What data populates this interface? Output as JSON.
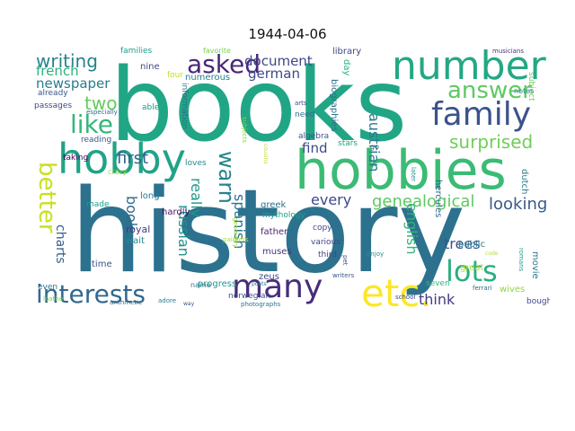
{
  "title": "1944-04-06",
  "words": [
    {
      "text": "history",
      "color": "#2c728e"
    },
    {
      "text": "books",
      "color": "#21a685"
    },
    {
      "text": "hobbies",
      "color": "#3bbb75"
    },
    {
      "text": "hobby",
      "color": "#20a386"
    },
    {
      "text": "number",
      "color": "#22a884"
    },
    {
      "text": "family",
      "color": "#3b528b"
    },
    {
      "text": "many",
      "color": "#472d7b"
    },
    {
      "text": "etc.",
      "color": "#fde725"
    },
    {
      "text": "interests",
      "color": "#31688e"
    },
    {
      "text": "lots",
      "color": "#29af7f"
    },
    {
      "text": "asked",
      "color": "#482878"
    },
    {
      "text": "answer",
      "color": "#5ec962"
    },
    {
      "text": "like",
      "color": "#35b779"
    },
    {
      "text": "better",
      "color": "#c8e020"
    },
    {
      "text": "writing",
      "color": "#26828e"
    },
    {
      "text": "warn",
      "color": "#25848e"
    },
    {
      "text": "surprised",
      "color": "#6ece58"
    },
    {
      "text": "genealogical",
      "color": "#5ec962"
    },
    {
      "text": "document",
      "color": "#404688"
    },
    {
      "text": "german",
      "color": "#3e4989"
    },
    {
      "text": "french",
      "color": "#2db27d"
    },
    {
      "text": "newspaper",
      "color": "#287c8e"
    },
    {
      "text": "two",
      "color": "#65cb5e"
    },
    {
      "text": "austrian",
      "color": "#2a788e"
    },
    {
      "text": "really",
      "color": "#1f988b"
    },
    {
      "text": "find",
      "color": "#3e4a89"
    },
    {
      "text": "first",
      "color": "#355f8d"
    },
    {
      "text": "charts",
      "color": "#34608d"
    },
    {
      "text": "book",
      "color": "#31688e"
    },
    {
      "text": "russian",
      "color": "#20928c"
    },
    {
      "text": "spanish",
      "color": "#2a768e"
    },
    {
      "text": "every",
      "color": "#3f4788"
    },
    {
      "text": "looking",
      "color": "#38598c"
    },
    {
      "text": "english",
      "color": "#2fb47c"
    },
    {
      "text": "trees",
      "color": "#39568c"
    },
    {
      "text": "think",
      "color": "#443b84"
    },
    {
      "text": "families",
      "color": "#1f9e89"
    },
    {
      "text": "favorite",
      "color": "#7ad151"
    },
    {
      "text": "nine",
      "color": "#3f4889"
    },
    {
      "text": "four",
      "color": "#c0df25"
    },
    {
      "text": "numerous",
      "color": "#26828e"
    },
    {
      "text": "library",
      "color": "#404688"
    },
    {
      "text": "day",
      "color": "#2db27d"
    },
    {
      "text": "biographies",
      "color": "#2e6f8e"
    },
    {
      "text": "subject",
      "color": "#6ece58"
    },
    {
      "text": "musicians",
      "color": "#46327e"
    },
    {
      "text": "notes",
      "color": "#26828e"
    },
    {
      "text": "already",
      "color": "#39568c"
    },
    {
      "text": "passages",
      "color": "#3e4a89"
    },
    {
      "text": "especially",
      "color": "#31688e"
    },
    {
      "text": "able",
      "color": "#1f978b"
    },
    {
      "text": "information",
      "color": "#2e6e8e"
    },
    {
      "text": "arts",
      "color": "#3f4889"
    },
    {
      "text": "need",
      "color": "#2c718e"
    },
    {
      "text": "subjects",
      "color": "#86d549"
    },
    {
      "text": "cousins",
      "color": "#b8de29"
    },
    {
      "text": "reading",
      "color": "#3b528b"
    },
    {
      "text": "loves",
      "color": "#24878e"
    },
    {
      "text": "algebra",
      "color": "#3b518b"
    },
    {
      "text": "stars",
      "color": "#1fa188"
    },
    {
      "text": "hercules",
      "color": "#31688e"
    },
    {
      "text": "dutch",
      "color": "#277f8e"
    },
    {
      "text": "go",
      "color": "#2e6f8e"
    },
    {
      "text": "later",
      "color": "#21918c"
    },
    {
      "text": "taking",
      "color": "#450457"
    },
    {
      "text": "crazy",
      "color": "#9bd93c"
    },
    {
      "text": "long",
      "color": "#2a788e"
    },
    {
      "text": "geometry",
      "color": "#9bd93c"
    },
    {
      "text": "made",
      "color": "#1fa088"
    },
    {
      "text": "hardly",
      "color": "#471063"
    },
    {
      "text": "greek",
      "color": "#2c718e"
    },
    {
      "text": "royal",
      "color": "#443983"
    },
    {
      "text": "wait",
      "color": "#24878e"
    },
    {
      "text": "time",
      "color": "#3b528b"
    },
    {
      "text": "mythology",
      "color": "#1f9e89"
    },
    {
      "text": "copy",
      "color": "#404688"
    },
    {
      "text": "father",
      "color": "#482576"
    },
    {
      "text": "various",
      "color": "#3f4788"
    },
    {
      "text": "third",
      "color": "#414487"
    },
    {
      "text": "pet",
      "color": "#3b528b"
    },
    {
      "text": "public",
      "color": "#2a788e"
    },
    {
      "text": "great",
      "color": "#b5de2b"
    },
    {
      "text": "romans",
      "color": "#1e9c89"
    },
    {
      "text": "movie",
      "color": "#2a788e"
    },
    {
      "text": "wives",
      "color": "#8fd744"
    },
    {
      "text": "bought",
      "color": "#404688"
    },
    {
      "text": "muses",
      "color": "#46337e"
    },
    {
      "text": "zeus",
      "color": "#3e4a89"
    },
    {
      "text": "writers",
      "color": "#39568c"
    },
    {
      "text": "enjoy",
      "color": "#20928c"
    },
    {
      "text": "seven",
      "color": "#35b779"
    },
    {
      "text": "school",
      "color": "#3f4788"
    },
    {
      "text": "progress",
      "color": "#1f988b"
    },
    {
      "text": "name",
      "color": "#2a788e"
    },
    {
      "text": "painters",
      "color": "#addc30"
    },
    {
      "text": "poets",
      "color": "#287c8e"
    },
    {
      "text": "even",
      "color": "#2c718e"
    },
    {
      "text": "norwegian",
      "color": "#3b528b"
    },
    {
      "text": "loathe",
      "color": "#7ad151"
    },
    {
      "text": "arithmetic",
      "color": "#2e6e8e"
    },
    {
      "text": "adore",
      "color": "#287c8e"
    },
    {
      "text": "way",
      "color": "#3b528b"
    },
    {
      "text": "photographs",
      "color": "#2a788e"
    },
    {
      "text": "code",
      "color": "#b5de2b"
    },
    {
      "text": "ferrari",
      "color": "#31688e"
    }
  ]
}
